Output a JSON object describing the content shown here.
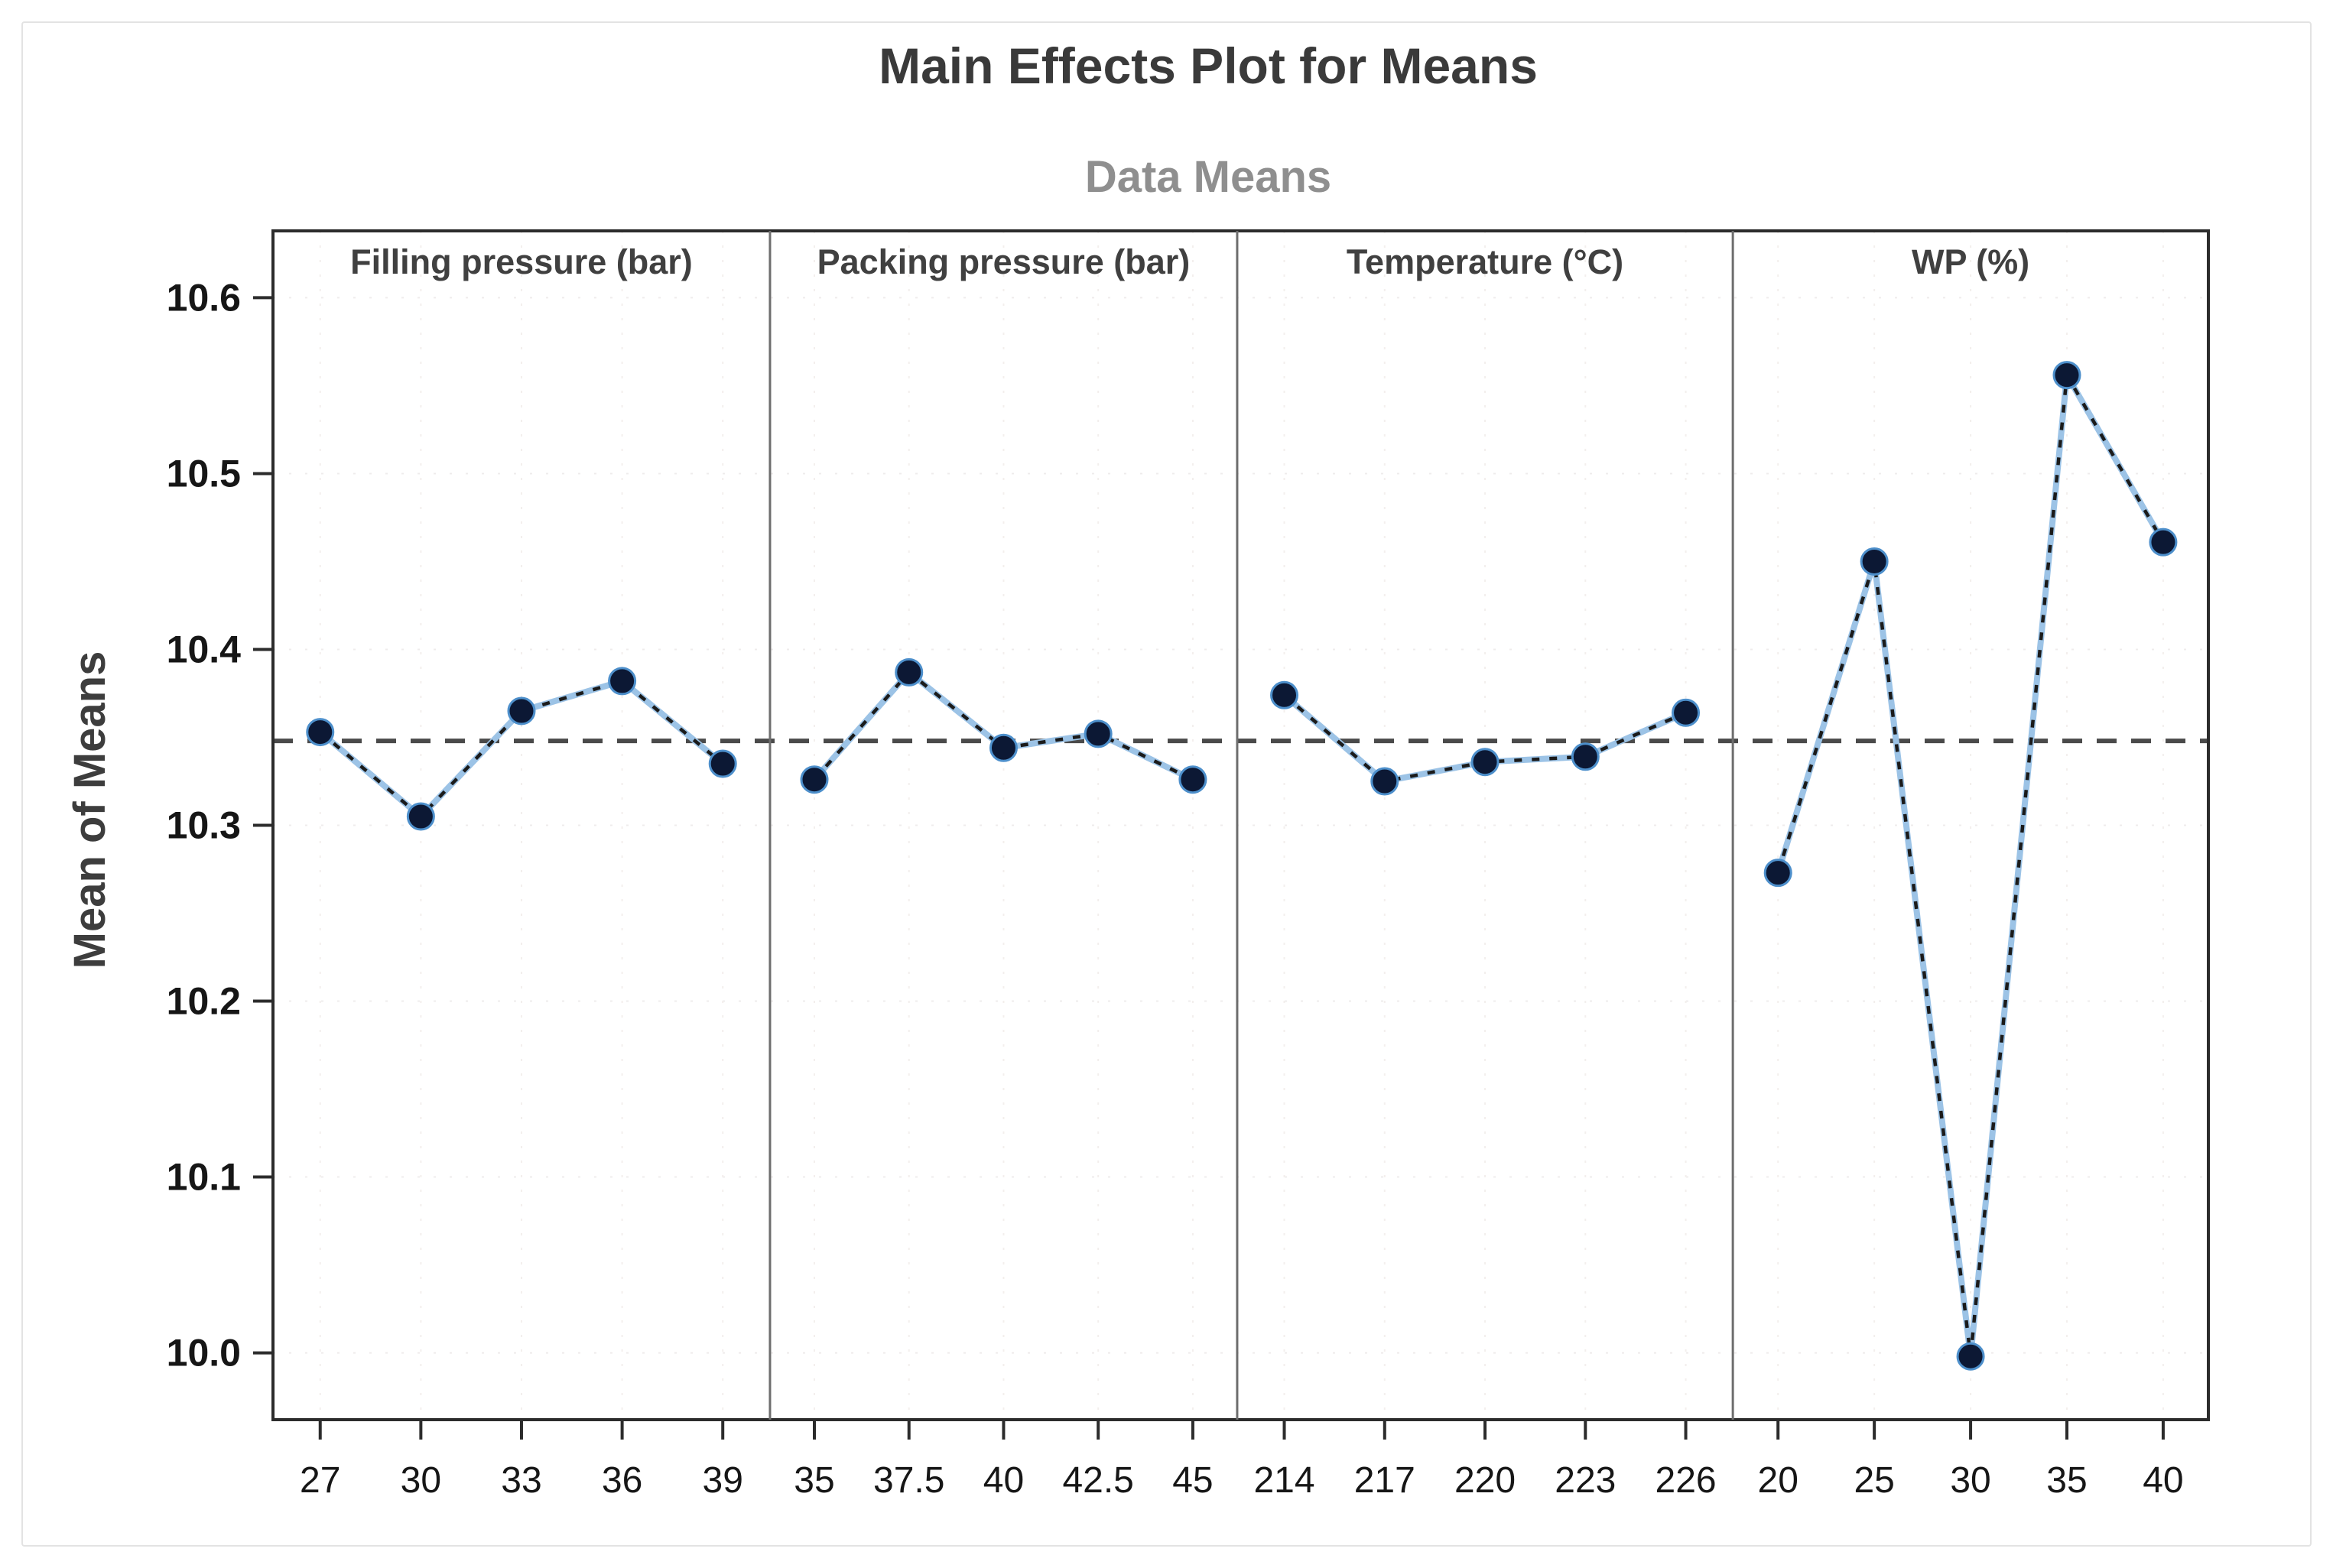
{
  "figure": {
    "background": "#ffffff",
    "border_color": "#e3e3e3"
  },
  "header": {
    "title": "Main Effects Plot for Means",
    "subtitle": "Data Means",
    "title_color": "#3a3a3a",
    "subtitle_color": "#8f8f8f"
  },
  "chart_data": {
    "type": "line",
    "title": "Main Effects Plot for Means",
    "subtitle": "Data Means",
    "ylabel": "Mean of Means",
    "ylim": [
      9.96,
      10.64
    ],
    "ytick_labels": [
      "10.6",
      "10.5",
      "10.4",
      "10.3",
      "10.2",
      "10.1",
      "10.0"
    ],
    "grid": "faint dotted gridlines at ticks",
    "legend": "none",
    "reference_line": {
      "value": 10.348,
      "style": "dashed"
    },
    "panels": [
      {
        "label": "Filling pressure (bar)",
        "categories": [
          "27",
          "30",
          "33",
          "36",
          "39"
        ],
        "values": [
          10.353,
          10.305,
          10.365,
          10.382,
          10.335
        ]
      },
      {
        "label": "Packing pressure (bar)",
        "categories": [
          "35",
          "37.5",
          "40",
          "42.5",
          "45"
        ],
        "values": [
          10.326,
          10.387,
          10.344,
          10.352,
          10.326
        ]
      },
      {
        "label": "Temperature (°C)",
        "categories": [
          "214",
          "217",
          "220",
          "223",
          "226"
        ],
        "values": [
          10.374,
          10.325,
          10.336,
          10.339,
          10.364
        ]
      },
      {
        "label": "WP (%)",
        "categories": [
          "20",
          "25",
          "30",
          "35",
          "40"
        ],
        "values": [
          10.273,
          10.45,
          9.998,
          10.556,
          10.461
        ]
      }
    ],
    "colors": {
      "marker_fill": "#0c1834",
      "marker_edge": "#4d8fcb",
      "line_base": "#9cc3e6",
      "line_dash": "#1b1b1b",
      "reference_line": "#4a4a4a",
      "frame": "#2c2c2c",
      "panel_divider": "#6e6e6e",
      "tick_text": "#161616",
      "panel_label_text": "#404040",
      "axis_label_text": "#3d3d3d",
      "gridline": "#efecec"
    }
  }
}
